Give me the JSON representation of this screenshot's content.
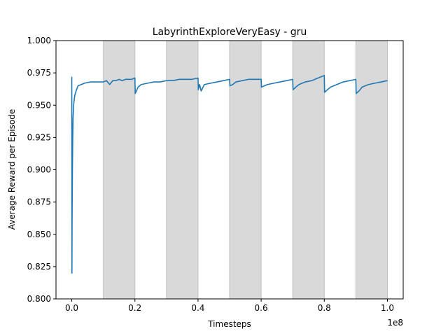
{
  "chart_data": {
    "type": "line",
    "title": "LabyrinthExploreVeryEasy - gru",
    "xlabel": "Timesteps",
    "ylabel": "Average Reward per Episode",
    "x_offset_label": "1e8",
    "xlim": [
      -0.05,
      1.05
    ],
    "ylim": [
      0.8,
      1.0
    ],
    "x_ticks": [
      0.0,
      0.2,
      0.4,
      0.6,
      0.8,
      1.0
    ],
    "x_tick_labels": [
      "0.0",
      "0.2",
      "0.4",
      "0.6",
      "0.8",
      "1.0"
    ],
    "y_ticks": [
      0.8,
      0.825,
      0.85,
      0.875,
      0.9,
      0.925,
      0.95,
      0.975,
      1.0
    ],
    "y_tick_labels": [
      "0.800",
      "0.825",
      "0.850",
      "0.875",
      "0.900",
      "0.925",
      "0.950",
      "0.975",
      "1.000"
    ],
    "shaded_regions": [
      [
        0.1,
        0.2
      ],
      [
        0.3,
        0.4
      ],
      [
        0.5,
        0.6
      ],
      [
        0.7,
        0.8
      ],
      [
        0.9,
        1.0
      ]
    ],
    "shade_color": "#d9d9d9",
    "series": [
      {
        "color": "#1f77b4",
        "x": [
          0.0,
          0.0005,
          0.001,
          0.002,
          0.003,
          0.004,
          0.006,
          0.008,
          0.01,
          0.015,
          0.02,
          0.03,
          0.04,
          0.06,
          0.08,
          0.1,
          0.11,
          0.12,
          0.13,
          0.14,
          0.15,
          0.16,
          0.17,
          0.18,
          0.19,
          0.2,
          0.201,
          0.21,
          0.22,
          0.24,
          0.26,
          0.28,
          0.3,
          0.32,
          0.34,
          0.36,
          0.38,
          0.4,
          0.401,
          0.405,
          0.41,
          0.42,
          0.44,
          0.46,
          0.48,
          0.5,
          0.501,
          0.51,
          0.52,
          0.54,
          0.56,
          0.58,
          0.6,
          0.601,
          0.61,
          0.62,
          0.64,
          0.66,
          0.68,
          0.7,
          0.701,
          0.71,
          0.72,
          0.74,
          0.76,
          0.78,
          0.8,
          0.801,
          0.81,
          0.82,
          0.84,
          0.86,
          0.88,
          0.9,
          0.901,
          0.91,
          0.92,
          0.94,
          0.96,
          0.98,
          1.0
        ],
        "y": [
          0.972,
          0.82,
          0.86,
          0.9,
          0.925,
          0.94,
          0.95,
          0.955,
          0.958,
          0.962,
          0.965,
          0.966,
          0.967,
          0.968,
          0.968,
          0.968,
          0.969,
          0.966,
          0.969,
          0.969,
          0.97,
          0.969,
          0.97,
          0.97,
          0.97,
          0.971,
          0.959,
          0.964,
          0.966,
          0.967,
          0.968,
          0.968,
          0.969,
          0.969,
          0.97,
          0.97,
          0.97,
          0.971,
          0.962,
          0.966,
          0.961,
          0.966,
          0.967,
          0.968,
          0.969,
          0.97,
          0.965,
          0.966,
          0.968,
          0.969,
          0.97,
          0.97,
          0.97,
          0.964,
          0.965,
          0.966,
          0.967,
          0.968,
          0.969,
          0.97,
          0.962,
          0.964,
          0.966,
          0.968,
          0.969,
          0.971,
          0.973,
          0.96,
          0.962,
          0.964,
          0.966,
          0.968,
          0.969,
          0.97,
          0.959,
          0.961,
          0.964,
          0.966,
          0.967,
          0.968,
          0.969
        ]
      }
    ]
  }
}
